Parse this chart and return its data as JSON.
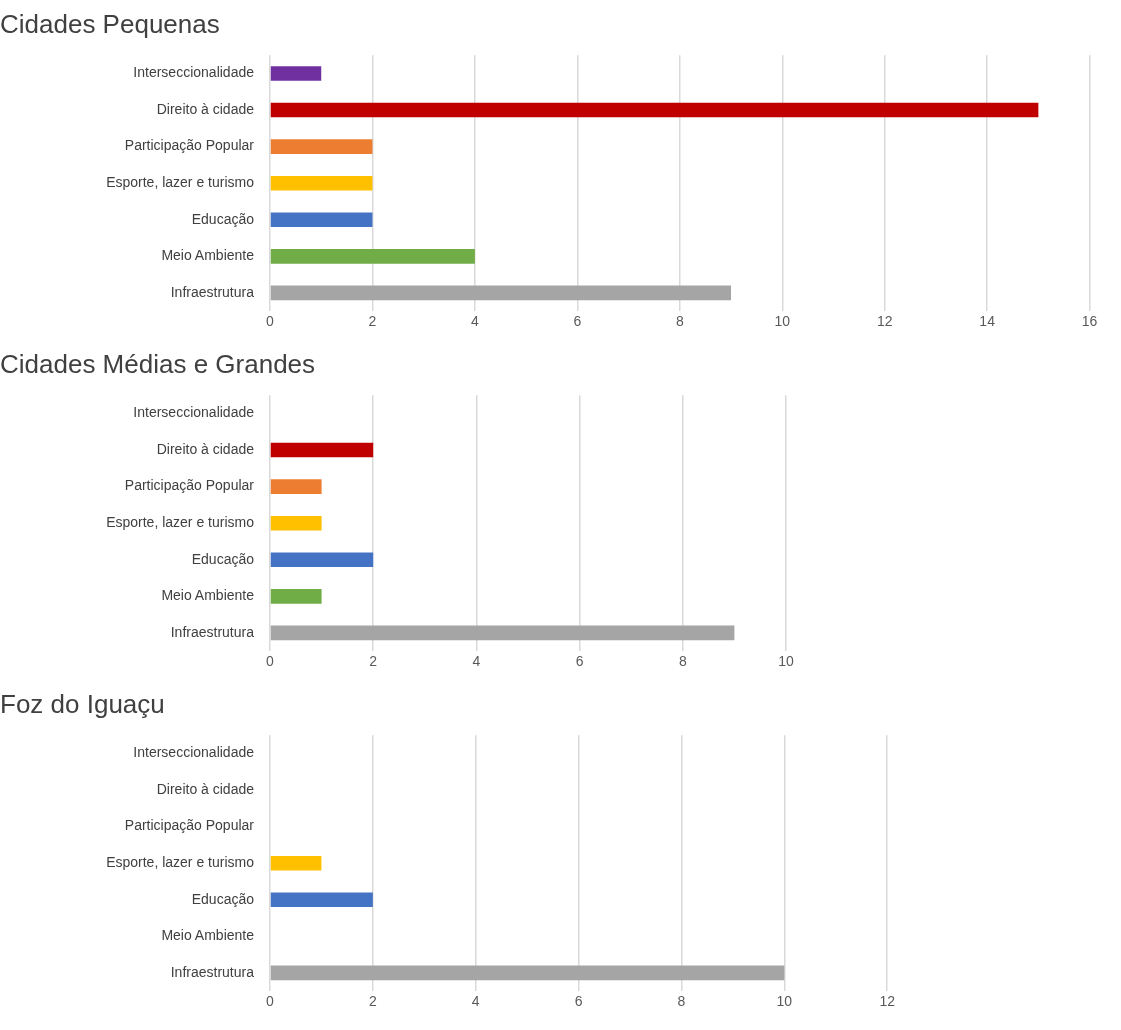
{
  "chart_data": [
    {
      "type": "bar",
      "orientation": "horizontal",
      "title": "Cidades Pequenas",
      "categories": [
        "Interseccionalidade",
        "Direito à cidade",
        "Participação Popular",
        "Esporte, lazer e turismo",
        "Educação",
        "Meio Ambiente",
        "Infraestrutura"
      ],
      "values": [
        1,
        15,
        2,
        2,
        2,
        4,
        9
      ],
      "colors": [
        "#7030a0",
        "#c00000",
        "#ed7d31",
        "#ffc000",
        "#4472c4",
        "#70ad47",
        "#a5a5a5"
      ],
      "xlim": [
        0,
        16
      ],
      "xticks": [
        0,
        2,
        4,
        6,
        8,
        10,
        12,
        14,
        16
      ],
      "grid": "x",
      "legend": false
    },
    {
      "type": "bar",
      "orientation": "horizontal",
      "title": "Cidades Médias e Grandes",
      "categories": [
        "Interseccionalidade",
        "Direito à cidade",
        "Participação Popular",
        "Esporte, lazer e turismo",
        "Educação",
        "Meio Ambiente",
        "Infraestrutura"
      ],
      "values": [
        0,
        2,
        1,
        1,
        2,
        1,
        9
      ],
      "colors": [
        "#7030a0",
        "#c00000",
        "#ed7d31",
        "#ffc000",
        "#4472c4",
        "#70ad47",
        "#a5a5a5"
      ],
      "xlim": [
        0,
        10
      ],
      "xticks": [
        0,
        2,
        4,
        6,
        8,
        10
      ],
      "grid": "x",
      "legend": false
    },
    {
      "type": "bar",
      "orientation": "horizontal",
      "title": "Foz do Iguaçu",
      "categories": [
        "Interseccionalidade",
        "Direito à cidade",
        "Participação Popular",
        "Esporte, lazer e turismo",
        "Educação",
        "Meio Ambiente",
        "Infraestrutura"
      ],
      "values": [
        0,
        0,
        0,
        1,
        2,
        0,
        10
      ],
      "colors": [
        "#7030a0",
        "#c00000",
        "#ed7d31",
        "#ffc000",
        "#4472c4",
        "#70ad47",
        "#a5a5a5"
      ],
      "xlim": [
        0,
        12
      ],
      "xticks": [
        0,
        2,
        4,
        6,
        8,
        10,
        12
      ],
      "grid": "x",
      "legend": false
    }
  ]
}
